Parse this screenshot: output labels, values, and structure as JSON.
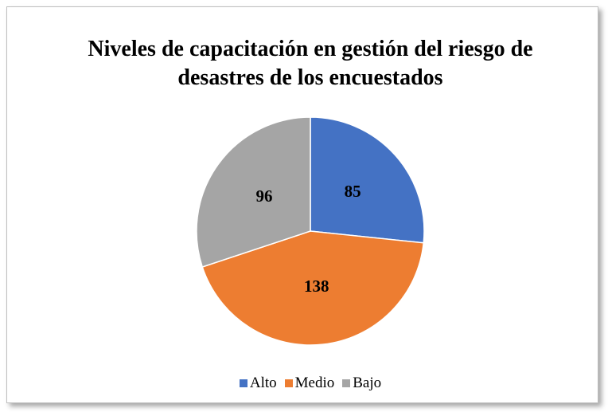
{
  "chart_data": {
    "type": "pie",
    "title": "Niveles de capacitación en gestión del riesgo de desastres de los encuestados",
    "categories": [
      "Alto",
      "Medio",
      "Bajo"
    ],
    "values": [
      85,
      138,
      96
    ],
    "colors": [
      "#4472c4",
      "#ed7d31",
      "#a5a5a5"
    ],
    "legend": "bottom"
  }
}
